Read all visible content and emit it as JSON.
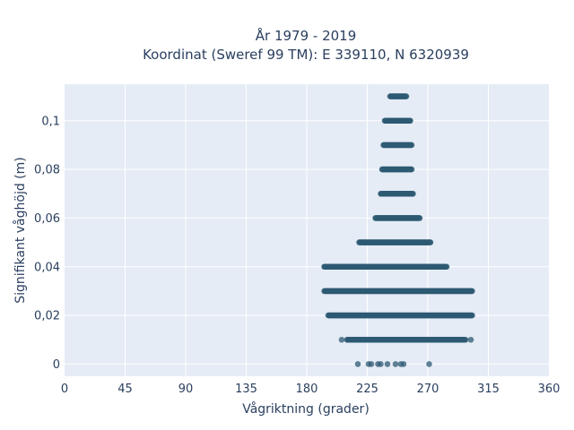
{
  "chart_data": {
    "type": "scatter",
    "title": "År 1979 - 2019",
    "subtitle": "Koordinat (Sweref 99 TM): E 339110, N 6320939",
    "xlabel": "Vågriktning (grader)",
    "ylabel": "Signifikant våghöjd (m)",
    "xlim": [
      0,
      360
    ],
    "ylim": [
      -0.005,
      0.115
    ],
    "x_ticks": [
      0,
      45,
      90,
      135,
      180,
      225,
      270,
      315,
      360
    ],
    "x_tick_labels": [
      "0",
      "45",
      "90",
      "135",
      "180",
      "225",
      "270",
      "315",
      "360"
    ],
    "y_ticks": [
      0,
      0.02,
      0.04,
      0.06,
      0.08,
      0.1
    ],
    "y_tick_labels": [
      "0",
      "0,02",
      "0,04",
      "0,06",
      "0,08",
      "0,1"
    ],
    "grid": true,
    "legend": "none",
    "marker_color": "#2e5a73",
    "plot_background": "#e5ecf6",
    "point_bands": [
      {
        "y": 0.0,
        "x_points": [
          218,
          226,
          228,
          233,
          235,
          240,
          246,
          250,
          252,
          271
        ]
      },
      {
        "y": 0.01,
        "x_min": 210,
        "x_max": 298,
        "x_outliers": [
          206,
          302
        ]
      },
      {
        "y": 0.02,
        "x_min": 196,
        "x_max": 303
      },
      {
        "y": 0.03,
        "x_min": 193,
        "x_max": 303
      },
      {
        "y": 0.04,
        "x_min": 193,
        "x_max": 284
      },
      {
        "y": 0.05,
        "x_min": 219,
        "x_max": 272
      },
      {
        "y": 0.06,
        "x_min": 231,
        "x_max": 264
      },
      {
        "y": 0.07,
        "x_min": 235,
        "x_max": 259
      },
      {
        "y": 0.08,
        "x_min": 236,
        "x_max": 258
      },
      {
        "y": 0.09,
        "x_min": 237,
        "x_max": 258
      },
      {
        "y": 0.1,
        "x_min": 238,
        "x_max": 257
      },
      {
        "y": 0.11,
        "x_min": 242,
        "x_max": 254
      }
    ]
  }
}
